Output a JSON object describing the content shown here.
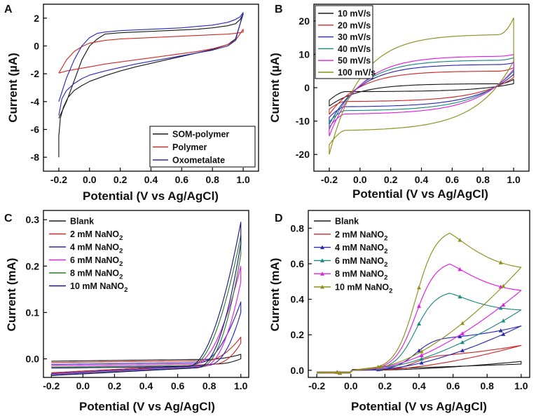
{
  "colors": {
    "black": "#1a1a1a",
    "red": "#d02a2a",
    "blue": "#2a2ab8",
    "teal": "#1d8a80",
    "magenta": "#e11fe1",
    "olive": "#8f8f1a",
    "green": "#2e7a2e",
    "navy": "#1a1a78"
  },
  "chart_data": [
    {
      "type": "line",
      "panel_label": "A",
      "xlabel": "Potential (V vs Ag/AgCl)",
      "ylabel": "Current (µA)",
      "xlim": [
        -0.3,
        1.1
      ],
      "ylim": [
        -9,
        3
      ],
      "xticks": [
        -0.2,
        0.0,
        0.2,
        0.4,
        0.6,
        0.8,
        1.0
      ],
      "xtick_labels": [
        "-0.2",
        "0.0",
        "0.2",
        "0.4",
        "0.6",
        "0.8",
        "1.0"
      ],
      "yticks": [
        -8,
        -6,
        -4,
        -2,
        0,
        2
      ],
      "ytick_labels": [
        "-8",
        "-6",
        "-4",
        "-2",
        "0",
        "2"
      ],
      "legend_position": "bottom-right",
      "series": [
        {
          "name": "SOM-polymer",
          "color": "#1a1a1a",
          "x": [
            -0.2,
            -0.2,
            -0.19,
            -0.17,
            -0.14,
            -0.1,
            -0.05,
            0.0,
            0.1,
            0.2,
            0.3,
            0.4,
            0.5,
            0.6,
            0.7,
            0.8,
            0.9,
            0.95,
            1.0,
            0.98,
            0.95,
            0.9,
            0.8,
            0.7,
            0.6,
            0.5,
            0.4,
            0.3,
            0.2,
            0.1,
            0.05,
            0.0,
            -0.05,
            -0.1,
            -0.15,
            -0.2
          ],
          "y": [
            -8.0,
            -6.5,
            -5.2,
            -4.4,
            -3.7,
            -3.2,
            -2.85,
            -2.55,
            -2.15,
            -1.8,
            -1.5,
            -1.25,
            -1.0,
            -0.75,
            -0.5,
            -0.25,
            0.1,
            0.5,
            2.3,
            1.9,
            1.6,
            1.45,
            1.3,
            1.2,
            1.15,
            1.1,
            1.05,
            1.0,
            0.95,
            0.85,
            0.5,
            0.0,
            -1.0,
            -2.5,
            -4.0,
            -5.2
          ]
        },
        {
          "name": "Polymer",
          "color": "#d02a2a",
          "x": [
            -0.2,
            -0.15,
            -0.1,
            -0.05,
            0.0,
            0.1,
            0.2,
            0.3,
            0.4,
            0.5,
            0.6,
            0.7,
            0.8,
            0.9,
            0.95,
            1.0,
            1.0,
            0.95,
            0.9,
            0.8,
            0.7,
            0.6,
            0.5,
            0.4,
            0.3,
            0.2,
            0.1,
            0.0,
            -0.05,
            -0.1,
            -0.15,
            -0.2
          ],
          "y": [
            -1.95,
            -1.8,
            -1.7,
            -1.6,
            -1.5,
            -1.3,
            -1.15,
            -1.0,
            -0.85,
            -0.7,
            -0.55,
            -0.4,
            -0.2,
            0.1,
            0.4,
            1.2,
            1.0,
            0.9,
            0.85,
            0.8,
            0.75,
            0.7,
            0.65,
            0.6,
            0.55,
            0.5,
            0.4,
            0.2,
            -0.05,
            -0.4,
            -1.0,
            -1.95
          ]
        },
        {
          "name": "Oxometalate",
          "color": "#2a2ab8",
          "x": [
            -0.2,
            -0.18,
            -0.15,
            -0.1,
            -0.05,
            0.0,
            0.1,
            0.2,
            0.3,
            0.4,
            0.5,
            0.6,
            0.7,
            0.8,
            0.9,
            0.95,
            1.0,
            0.98,
            0.95,
            0.9,
            0.8,
            0.7,
            0.6,
            0.5,
            0.4,
            0.3,
            0.2,
            0.1,
            0.05,
            0.0,
            -0.05,
            -0.1,
            -0.15,
            -0.2
          ],
          "y": [
            -5.0,
            -3.8,
            -3.2,
            -2.7,
            -2.35,
            -2.1,
            -1.8,
            -1.55,
            -1.3,
            -1.1,
            -0.9,
            -0.7,
            -0.5,
            -0.3,
            0.0,
            0.4,
            2.4,
            2.1,
            1.9,
            1.7,
            1.5,
            1.4,
            1.3,
            1.25,
            1.2,
            1.15,
            1.1,
            1.0,
            0.9,
            0.6,
            0.0,
            -1.0,
            -2.3,
            -4.0
          ]
        }
      ]
    },
    {
      "type": "line",
      "panel_label": "B",
      "xlabel": "Potential (V vs Ag/AgCl)",
      "ylabel": "Current (µA)",
      "xlim": [
        -0.3,
        1.1
      ],
      "ylim": [
        -25,
        25
      ],
      "xticks": [
        -0.2,
        0.0,
        0.2,
        0.4,
        0.6,
        0.8,
        1.0
      ],
      "xtick_labels": [
        "-0.2",
        "0.0",
        "0.2",
        "0.4",
        "0.6",
        "0.8",
        "1.0"
      ],
      "yticks": [
        -20,
        -10,
        0,
        10,
        20
      ],
      "ytick_labels": [
        "-20",
        "-10",
        "0",
        "10",
        "20"
      ],
      "legend_position": "top-left",
      "cv": true,
      "series": [
        {
          "name": "10 mV/s",
          "color": "#1a1a1a",
          "ip": 1.2,
          "ic": -1.2,
          "a": 1.5,
          "tipHigh": 2.5,
          "tipLow": 1.2,
          "startLow": -5.5
        },
        {
          "name": "20 mV/s",
          "color": "#d02a2a",
          "ip": 5.0,
          "ic": -4.2,
          "a": 2.3,
          "tipHigh": 6.0,
          "tipLow": 3.0,
          "startLow": -8.0
        },
        {
          "name": "30 mV/s",
          "color": "#2a2ab8",
          "ip": 7.0,
          "ic": -5.8,
          "a": 2.8,
          "tipHigh": 7.5,
          "tipLow": 4.0,
          "startLow": -11.0
        },
        {
          "name": "40 mV/s",
          "color": "#1d8a80",
          "ip": 8.3,
          "ic": -7.0,
          "a": 3.2,
          "tipHigh": 9.0,
          "tipLow": 5.0,
          "startLow": -12.5
        },
        {
          "name": "50 mV/s",
          "color": "#e11fe1",
          "ip": 9.5,
          "ic": -8.0,
          "a": 3.6,
          "tipHigh": 10.0,
          "tipLow": 5.5,
          "startLow": -14.5
        },
        {
          "name": "100 mV/s",
          "color": "#8f8f1a",
          "ip": 16.0,
          "ic": -13.0,
          "a": 5.5,
          "tipHigh": 21.0,
          "tipLow": 8.0,
          "startLow": -20.0
        }
      ]
    },
    {
      "type": "line",
      "panel_label": "C",
      "xlabel": "Potential (V vs Ag/AgCl)",
      "ylabel": "Current (mA)",
      "xlim": [
        -0.25,
        1.05
      ],
      "ylim": [
        -0.04,
        0.32
      ],
      "xticks": [
        -0.2,
        0.0,
        0.2,
        0.4,
        0.6,
        0.8,
        1.0
      ],
      "xtick_labels": [
        "-0.2",
        "0.0",
        "0.2",
        "0.4",
        "0.6",
        "0.8",
        "1.0"
      ],
      "yticks": [
        0.0,
        0.1,
        0.2,
        0.3
      ],
      "ytick_labels": [
        "0.0",
        "0.1",
        "0.2",
        "0.3"
      ],
      "legend_position": "top-left",
      "onset": true,
      "series": [
        {
          "name": "Blank",
          "sub": "",
          "color": "#1a1a1a",
          "peak": 0.01,
          "onset": 0.8,
          "base": -0.005,
          "low": -0.03
        },
        {
          "name": "2 mM NaNO",
          "sub": "2",
          "color": "#d02a2a",
          "peak": 0.05,
          "onset": 0.78,
          "base": -0.008,
          "low": -0.03
        },
        {
          "name": "4 mM NaNO",
          "sub": "2",
          "color": "#2a2ab8",
          "peak": 0.13,
          "onset": 0.74,
          "base": -0.012,
          "low": -0.032
        },
        {
          "name": "6 mM NaNO",
          "sub": "2",
          "color": "#e11fe1",
          "peak": 0.21,
          "onset": 0.71,
          "base": -0.015,
          "low": -0.034
        },
        {
          "name": "8 mM NaNO",
          "sub": "2",
          "color": "#2e7a2e",
          "peak": 0.28,
          "onset": 0.69,
          "base": -0.018,
          "low": -0.035
        },
        {
          "name": "10 mM NaNO",
          "sub": "2",
          "color": "#1a1a78",
          "peak": 0.31,
          "onset": 0.67,
          "base": -0.02,
          "low": -0.036
        }
      ]
    },
    {
      "type": "line",
      "panel_label": "D",
      "xlabel": "Potential (V vs Ag/AgCl)",
      "ylabel": "Current (mA)",
      "xlim": [
        -0.25,
        1.05
      ],
      "ylim": [
        -0.04,
        0.9
      ],
      "xticks": [
        -0.2,
        0.0,
        0.2,
        0.4,
        0.6,
        0.8,
        1.0
      ],
      "xtick_labels": [
        "-0.2",
        "0.0",
        "0.2",
        "0.4",
        "0.6",
        "0.8",
        "1.0"
      ],
      "yticks": [
        0.0,
        0.2,
        0.4,
        0.6,
        0.8
      ],
      "ytick_labels": [
        "0.0",
        "0.2",
        "0.4",
        "0.6",
        "0.8"
      ],
      "legend_position": "top-left",
      "peakcv": true,
      "series": [
        {
          "name": "Blank",
          "sub": "",
          "color": "#1a1a1a",
          "peak": 0.0,
          "end": 0.05,
          "ret": 0.01,
          "marker": "none"
        },
        {
          "name": "2 mM NaNO",
          "sub": "2",
          "color": "#d02a2a",
          "peak": 0.09,
          "end": 0.14,
          "ret": 0.02,
          "marker": "none"
        },
        {
          "name": "4 mM NaNO",
          "sub": "2",
          "color": "#2a2ab8",
          "peak": 0.19,
          "end": 0.25,
          "ret": 0.04,
          "marker": "tri"
        },
        {
          "name": "6 mM NaNO",
          "sub": "2",
          "color": "#1d8a80",
          "peak": 0.45,
          "end": 0.34,
          "ret": 0.08,
          "marker": "tri"
        },
        {
          "name": "8 mM NaNO",
          "sub": "2",
          "color": "#e11fe1",
          "peak": 0.62,
          "end": 0.45,
          "ret": 0.1,
          "marker": "tri"
        },
        {
          "name": "10 mM NaNO",
          "sub": "2",
          "color": "#8f8f1a",
          "peak": 0.8,
          "end": 0.58,
          "ret": 0.12,
          "marker": "tri"
        }
      ]
    }
  ]
}
